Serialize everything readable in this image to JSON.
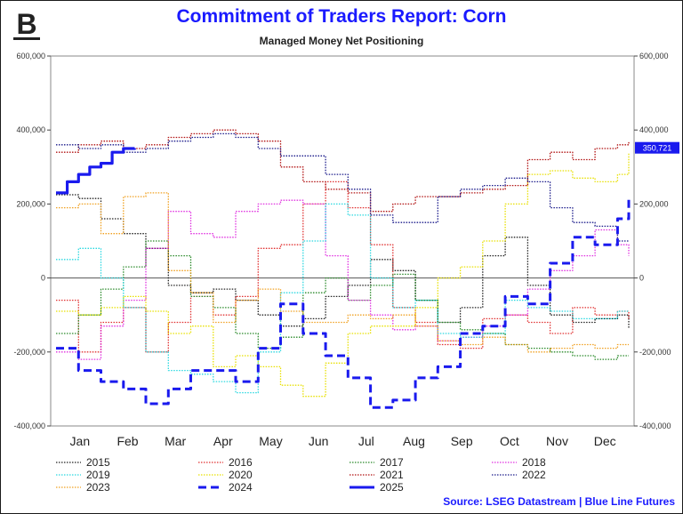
{
  "logo_letter": "B",
  "title": "Commitment of Traders Report: Corn",
  "subtitle": "Managed Money Net Positioning",
  "source": "Source: LSEG Datastream | Blue Line Futures",
  "chart_data": {
    "type": "line",
    "x_labels": [
      "Jan",
      "Feb",
      "Mar",
      "Apr",
      "May",
      "Jun",
      "Jul",
      "Aug",
      "Sep",
      "Oct",
      "Nov",
      "Dec"
    ],
    "y_ticks": [
      -400000,
      -200000,
      0,
      200000,
      400000,
      600000
    ],
    "y_tick_labels": [
      "-400,000",
      "-200,000",
      "0",
      "200,000",
      "400,000",
      "600,000"
    ],
    "ylim": [
      -400000,
      600000
    ],
    "xlim": [
      1,
      52
    ],
    "last_value_label": "350,721",
    "last_value": 350721,
    "legend_position": "bottom",
    "series": [
      {
        "name": "2015",
        "color": "#222222",
        "style": "dotted",
        "width": 1.3,
        "x": [
          1,
          3,
          5,
          7,
          9,
          11,
          13,
          15,
          17,
          19,
          21,
          23,
          25,
          27,
          29,
          31,
          33,
          35,
          37,
          39,
          41,
          43,
          45,
          47,
          49,
          51,
          52
        ],
        "y": [
          225000,
          215000,
          160000,
          120000,
          80000,
          -20000,
          -40000,
          -30000,
          -60000,
          -100000,
          -130000,
          -110000,
          -50000,
          -20000,
          50000,
          20000,
          -60000,
          -120000,
          -80000,
          60000,
          110000,
          -20000,
          -100000,
          -120000,
          -110000,
          -100000,
          -135000
        ]
      },
      {
        "name": "2016",
        "color": "#e03030",
        "style": "dotted",
        "width": 1.3,
        "x": [
          1,
          3,
          5,
          7,
          9,
          11,
          13,
          15,
          17,
          19,
          21,
          23,
          25,
          27,
          29,
          31,
          33,
          35,
          37,
          39,
          41,
          43,
          45,
          47,
          49,
          51,
          52
        ],
        "y": [
          -60000,
          -200000,
          -120000,
          -80000,
          -200000,
          -120000,
          -50000,
          -100000,
          -50000,
          80000,
          90000,
          200000,
          260000,
          190000,
          90000,
          -80000,
          -120000,
          -180000,
          -190000,
          -110000,
          -100000,
          -120000,
          -150000,
          -80000,
          -100000,
          -90000,
          -110000
        ]
      },
      {
        "name": "2017",
        "color": "#2a8a2a",
        "style": "dotted",
        "width": 1.3,
        "x": [
          1,
          3,
          5,
          7,
          9,
          11,
          13,
          15,
          17,
          19,
          21,
          23,
          25,
          27,
          29,
          31,
          33,
          35,
          37,
          39,
          41,
          43,
          45,
          47,
          49,
          51,
          52
        ],
        "y": [
          -150000,
          -100000,
          -30000,
          30000,
          100000,
          60000,
          -50000,
          -80000,
          -150000,
          -190000,
          -160000,
          -40000,
          0,
          -60000,
          -20000,
          10000,
          -60000,
          -120000,
          -140000,
          -150000,
          -180000,
          -190000,
          -200000,
          -210000,
          -220000,
          -210000,
          -210000
        ]
      },
      {
        "name": "2018",
        "color": "#e030e0",
        "style": "dotted",
        "width": 1.3,
        "x": [
          1,
          3,
          5,
          7,
          9,
          11,
          13,
          15,
          17,
          19,
          21,
          23,
          25,
          27,
          29,
          31,
          33,
          35,
          37,
          39,
          41,
          43,
          45,
          47,
          49,
          51,
          52
        ],
        "y": [
          -200000,
          -220000,
          -130000,
          -60000,
          80000,
          180000,
          120000,
          110000,
          180000,
          200000,
          210000,
          200000,
          60000,
          -60000,
          -100000,
          -140000,
          -130000,
          -170000,
          -160000,
          -130000,
          -100000,
          -30000,
          20000,
          60000,
          130000,
          90000,
          60000
        ]
      },
      {
        "name": "2019",
        "color": "#2ad8e0",
        "style": "dotted",
        "width": 1.3,
        "x": [
          1,
          3,
          5,
          7,
          9,
          11,
          13,
          15,
          17,
          19,
          21,
          23,
          25,
          27,
          29,
          31,
          33,
          35,
          37,
          39,
          41,
          43,
          45,
          47,
          49,
          51,
          52
        ],
        "y": [
          50000,
          80000,
          0,
          -80000,
          -200000,
          -250000,
          -260000,
          -280000,
          -310000,
          -200000,
          -40000,
          100000,
          200000,
          170000,
          0,
          -80000,
          -60000,
          -150000,
          -160000,
          -150000,
          -60000,
          -80000,
          -90000,
          -110000,
          -110000,
          -90000,
          -90000
        ]
      },
      {
        "name": "2020",
        "color": "#e8e000",
        "style": "dotted",
        "width": 1.3,
        "x": [
          1,
          3,
          5,
          7,
          9,
          11,
          13,
          15,
          17,
          19,
          21,
          23,
          25,
          27,
          29,
          31,
          33,
          35,
          37,
          39,
          41,
          43,
          45,
          47,
          49,
          51,
          52
        ],
        "y": [
          -90000,
          -100000,
          -80000,
          -50000,
          -90000,
          -150000,
          -130000,
          -240000,
          -210000,
          -240000,
          -290000,
          -320000,
          -230000,
          -150000,
          -130000,
          -130000,
          -80000,
          0,
          30000,
          100000,
          200000,
          280000,
          290000,
          270000,
          260000,
          280000,
          340000
        ]
      },
      {
        "name": "2021",
        "color": "#b01010",
        "style": "dotted",
        "width": 1.3,
        "x": [
          1,
          3,
          5,
          7,
          9,
          11,
          13,
          15,
          17,
          19,
          21,
          23,
          25,
          27,
          29,
          31,
          33,
          35,
          37,
          39,
          41,
          43,
          45,
          47,
          49,
          51,
          52
        ],
        "y": [
          340000,
          360000,
          370000,
          350000,
          360000,
          380000,
          390000,
          400000,
          390000,
          370000,
          300000,
          260000,
          240000,
          230000,
          180000,
          200000,
          220000,
          220000,
          230000,
          240000,
          250000,
          320000,
          340000,
          320000,
          350000,
          360000,
          370000
        ]
      },
      {
        "name": "2022",
        "color": "#1a1a8a",
        "style": "dotted",
        "width": 1.3,
        "x": [
          1,
          3,
          5,
          7,
          9,
          11,
          13,
          15,
          17,
          19,
          21,
          23,
          25,
          27,
          29,
          31,
          33,
          35,
          37,
          39,
          41,
          43,
          45,
          47,
          49,
          51,
          52
        ],
        "y": [
          360000,
          350000,
          360000,
          340000,
          350000,
          370000,
          380000,
          390000,
          380000,
          350000,
          330000,
          330000,
          280000,
          240000,
          170000,
          150000,
          150000,
          220000,
          240000,
          250000,
          270000,
          260000,
          190000,
          150000,
          140000,
          100000,
          100000
        ]
      },
      {
        "name": "2023",
        "color": "#f0a020",
        "style": "dotted",
        "width": 1.3,
        "x": [
          1,
          3,
          5,
          7,
          9,
          11,
          13,
          15,
          17,
          19,
          21,
          23,
          25,
          27,
          29,
          31,
          33,
          35,
          37,
          39,
          41,
          43,
          45,
          47,
          49,
          51,
          52
        ],
        "y": [
          190000,
          200000,
          120000,
          220000,
          230000,
          20000,
          -40000,
          -120000,
          -60000,
          -30000,
          -90000,
          -120000,
          -120000,
          -100000,
          -110000,
          -100000,
          -130000,
          -170000,
          -180000,
          -160000,
          -180000,
          -200000,
          -190000,
          -180000,
          -190000,
          -180000,
          -180000
        ]
      },
      {
        "name": "2024",
        "color": "#1a1aee",
        "style": "dashed",
        "width": 3,
        "x": [
          1,
          3,
          5,
          7,
          9,
          11,
          13,
          15,
          17,
          19,
          21,
          23,
          25,
          27,
          29,
          31,
          33,
          35,
          37,
          39,
          41,
          43,
          45,
          47,
          49,
          51,
          52
        ],
        "y": [
          -190000,
          -250000,
          -280000,
          -300000,
          -340000,
          -300000,
          -250000,
          -250000,
          -280000,
          -190000,
          -70000,
          -150000,
          -210000,
          -270000,
          -350000,
          -330000,
          -270000,
          -240000,
          -150000,
          -130000,
          -50000,
          -70000,
          40000,
          110000,
          90000,
          160000,
          220000
        ]
      },
      {
        "name": "2025",
        "color": "#1a1aee",
        "style": "solid",
        "width": 3.2,
        "x": [
          1,
          2,
          3,
          4,
          5,
          6,
          7,
          8
        ],
        "y": [
          230000,
          260000,
          280000,
          300000,
          310000,
          340000,
          350000,
          350721
        ]
      }
    ]
  }
}
